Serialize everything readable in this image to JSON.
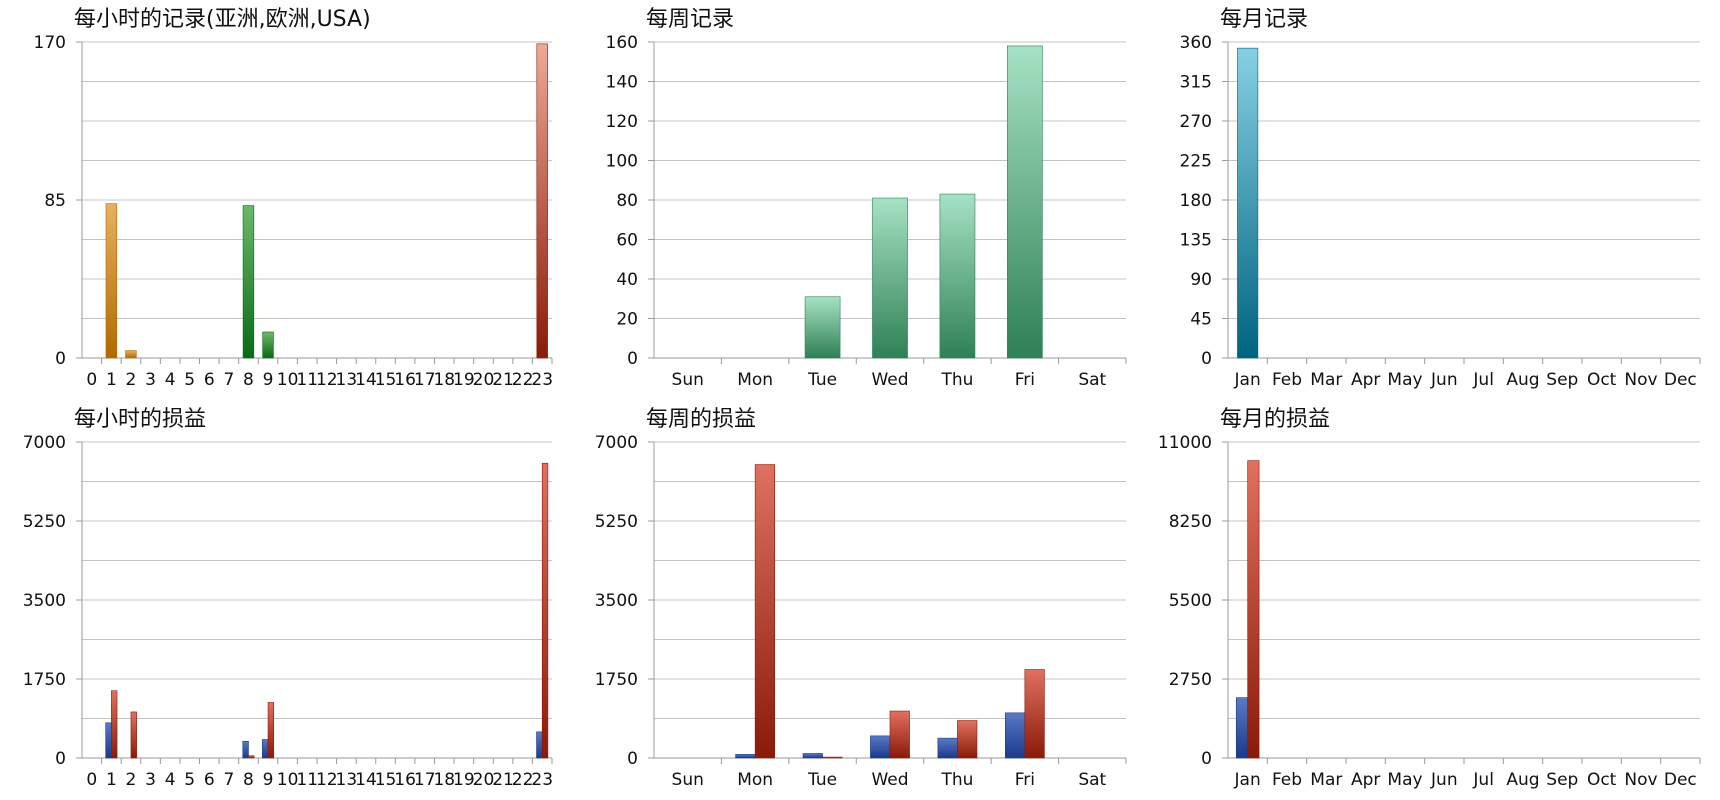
{
  "palette": {
    "orange": [
      "#e8b060",
      "#b06a00"
    ],
    "green": [
      "#6bb86b",
      "#0a6a12"
    ],
    "salmon": [
      "#eea898",
      "#8b1a08"
    ],
    "seagreen": [
      "#a6e2c4",
      "#2f8055"
    ],
    "teal": [
      "#86d0e4",
      "#006480"
    ],
    "navy": [
      "#5a7ac4",
      "#1a3a8a"
    ],
    "brick": [
      "#e07060",
      "#8b1a08"
    ]
  },
  "chart_data": [
    {
      "type": "bar",
      "title": "每小时的记录(亚洲,欧洲,USA)",
      "categories": [
        "0",
        "1",
        "2",
        "3",
        "4",
        "5",
        "6",
        "7",
        "8",
        "9",
        "10",
        "11",
        "12",
        "13",
        "14",
        "15",
        "16",
        "17",
        "18",
        "19",
        "20",
        "21",
        "22",
        "23"
      ],
      "series": [
        {
          "values": [
            0,
            83,
            4,
            0,
            0,
            0,
            0,
            0,
            0,
            0,
            0,
            0,
            0,
            0,
            0,
            0,
            0,
            0,
            0,
            0,
            0,
            0,
            0,
            0
          ],
          "color": "orange"
        },
        {
          "values": [
            0,
            0,
            0,
            0,
            0,
            0,
            0,
            0,
            82,
            14,
            0,
            0,
            0,
            0,
            0,
            0,
            0,
            0,
            0,
            0,
            0,
            0,
            0,
            0
          ],
          "color": "green"
        },
        {
          "values": [
            0,
            0,
            0,
            0,
            0,
            0,
            0,
            0,
            0,
            0,
            0,
            0,
            0,
            0,
            0,
            0,
            0,
            0,
            0,
            0,
            0,
            0,
            0,
            169
          ],
          "color": "salmon"
        }
      ],
      "stacked": true,
      "ylim": [
        0,
        170
      ],
      "yticks": [
        0,
        85,
        170
      ],
      "ygrid": [
        0,
        21.25,
        42.5,
        63.75,
        85,
        106.25,
        127.5,
        148.75,
        170
      ],
      "grid": true
    },
    {
      "type": "bar",
      "title": "每周记录",
      "categories": [
        "Sun",
        "Mon",
        "Tue",
        "Wed",
        "Thu",
        "Fri",
        "Sat"
      ],
      "series": [
        {
          "values": [
            0,
            0,
            31,
            81,
            83,
            158,
            0
          ],
          "color": "seagreen"
        }
      ],
      "ylim": [
        0,
        160
      ],
      "yticks": [
        0,
        20,
        40,
        60,
        80,
        100,
        120,
        140,
        160
      ],
      "ygrid": [
        0,
        20,
        40,
        60,
        80,
        100,
        120,
        140,
        160
      ],
      "grid": true
    },
    {
      "type": "bar",
      "title": "每月记录",
      "categories": [
        "Jan",
        "Feb",
        "Mar",
        "Apr",
        "May",
        "Jun",
        "Jul",
        "Aug",
        "Sep",
        "Oct",
        "Nov",
        "Dec"
      ],
      "series": [
        {
          "values": [
            353,
            0,
            0,
            0,
            0,
            0,
            0,
            0,
            0,
            0,
            0,
            0
          ],
          "color": "teal"
        }
      ],
      "ylim": [
        0,
        360
      ],
      "yticks": [
        0,
        45,
        90,
        135,
        180,
        225,
        270,
        315,
        360
      ],
      "ygrid": [
        0,
        45,
        90,
        135,
        180,
        225,
        270,
        315,
        360
      ],
      "grid": true
    },
    {
      "type": "bar",
      "title": "每小时的损益",
      "categories": [
        "0",
        "1",
        "2",
        "3",
        "4",
        "5",
        "6",
        "7",
        "8",
        "9",
        "10",
        "11",
        "12",
        "13",
        "14",
        "15",
        "16",
        "17",
        "18",
        "19",
        "20",
        "21",
        "22",
        "23"
      ],
      "series": [
        {
          "values": [
            0,
            780,
            0,
            0,
            0,
            0,
            0,
            0,
            370,
            410,
            0,
            0,
            0,
            0,
            0,
            0,
            0,
            0,
            0,
            0,
            0,
            0,
            0,
            580
          ],
          "color": "navy"
        },
        {
          "values": [
            0,
            1490,
            1020,
            0,
            0,
            0,
            0,
            0,
            50,
            1230,
            0,
            0,
            0,
            0,
            0,
            0,
            0,
            0,
            0,
            0,
            0,
            0,
            0,
            6530
          ],
          "color": "brick"
        }
      ],
      "ylim": [
        0,
        7000
      ],
      "yticks": [
        0,
        1750,
        3500,
        5250,
        7000
      ],
      "ygrid": [
        0,
        875,
        1750,
        2625,
        3500,
        4375,
        5250,
        6125,
        7000
      ],
      "grid": true
    },
    {
      "type": "bar",
      "title": "每周的损益",
      "categories": [
        "Sun",
        "Mon",
        "Tue",
        "Wed",
        "Thu",
        "Fri",
        "Sat"
      ],
      "series": [
        {
          "values": [
            0,
            80,
            100,
            490,
            440,
            1000,
            0
          ],
          "color": "navy"
        },
        {
          "values": [
            0,
            6500,
            20,
            1040,
            830,
            1960,
            0
          ],
          "color": "brick"
        }
      ],
      "ylim": [
        0,
        7000
      ],
      "yticks": [
        0,
        1750,
        3500,
        5250,
        7000
      ],
      "ygrid": [
        0,
        875,
        1750,
        2625,
        3500,
        4375,
        5250,
        6125,
        7000
      ],
      "grid": true
    },
    {
      "type": "bar",
      "title": "每月的损益",
      "categories": [
        "Jan",
        "Feb",
        "Mar",
        "Apr",
        "May",
        "Jun",
        "Jul",
        "Aug",
        "Sep",
        "Oct",
        "Nov",
        "Dec"
      ],
      "series": [
        {
          "values": [
            2100,
            0,
            0,
            0,
            0,
            0,
            0,
            0,
            0,
            0,
            0,
            0
          ],
          "color": "navy"
        },
        {
          "values": [
            10350,
            0,
            0,
            0,
            0,
            0,
            0,
            0,
            0,
            0,
            0,
            0
          ],
          "color": "brick"
        }
      ],
      "ylim": [
        0,
        11000
      ],
      "yticks": [
        0,
        2750,
        5500,
        8250,
        11000
      ],
      "ygrid": [
        0,
        1375,
        2750,
        4125,
        5500,
        6875,
        8250,
        9625,
        11000
      ],
      "grid": true
    }
  ]
}
